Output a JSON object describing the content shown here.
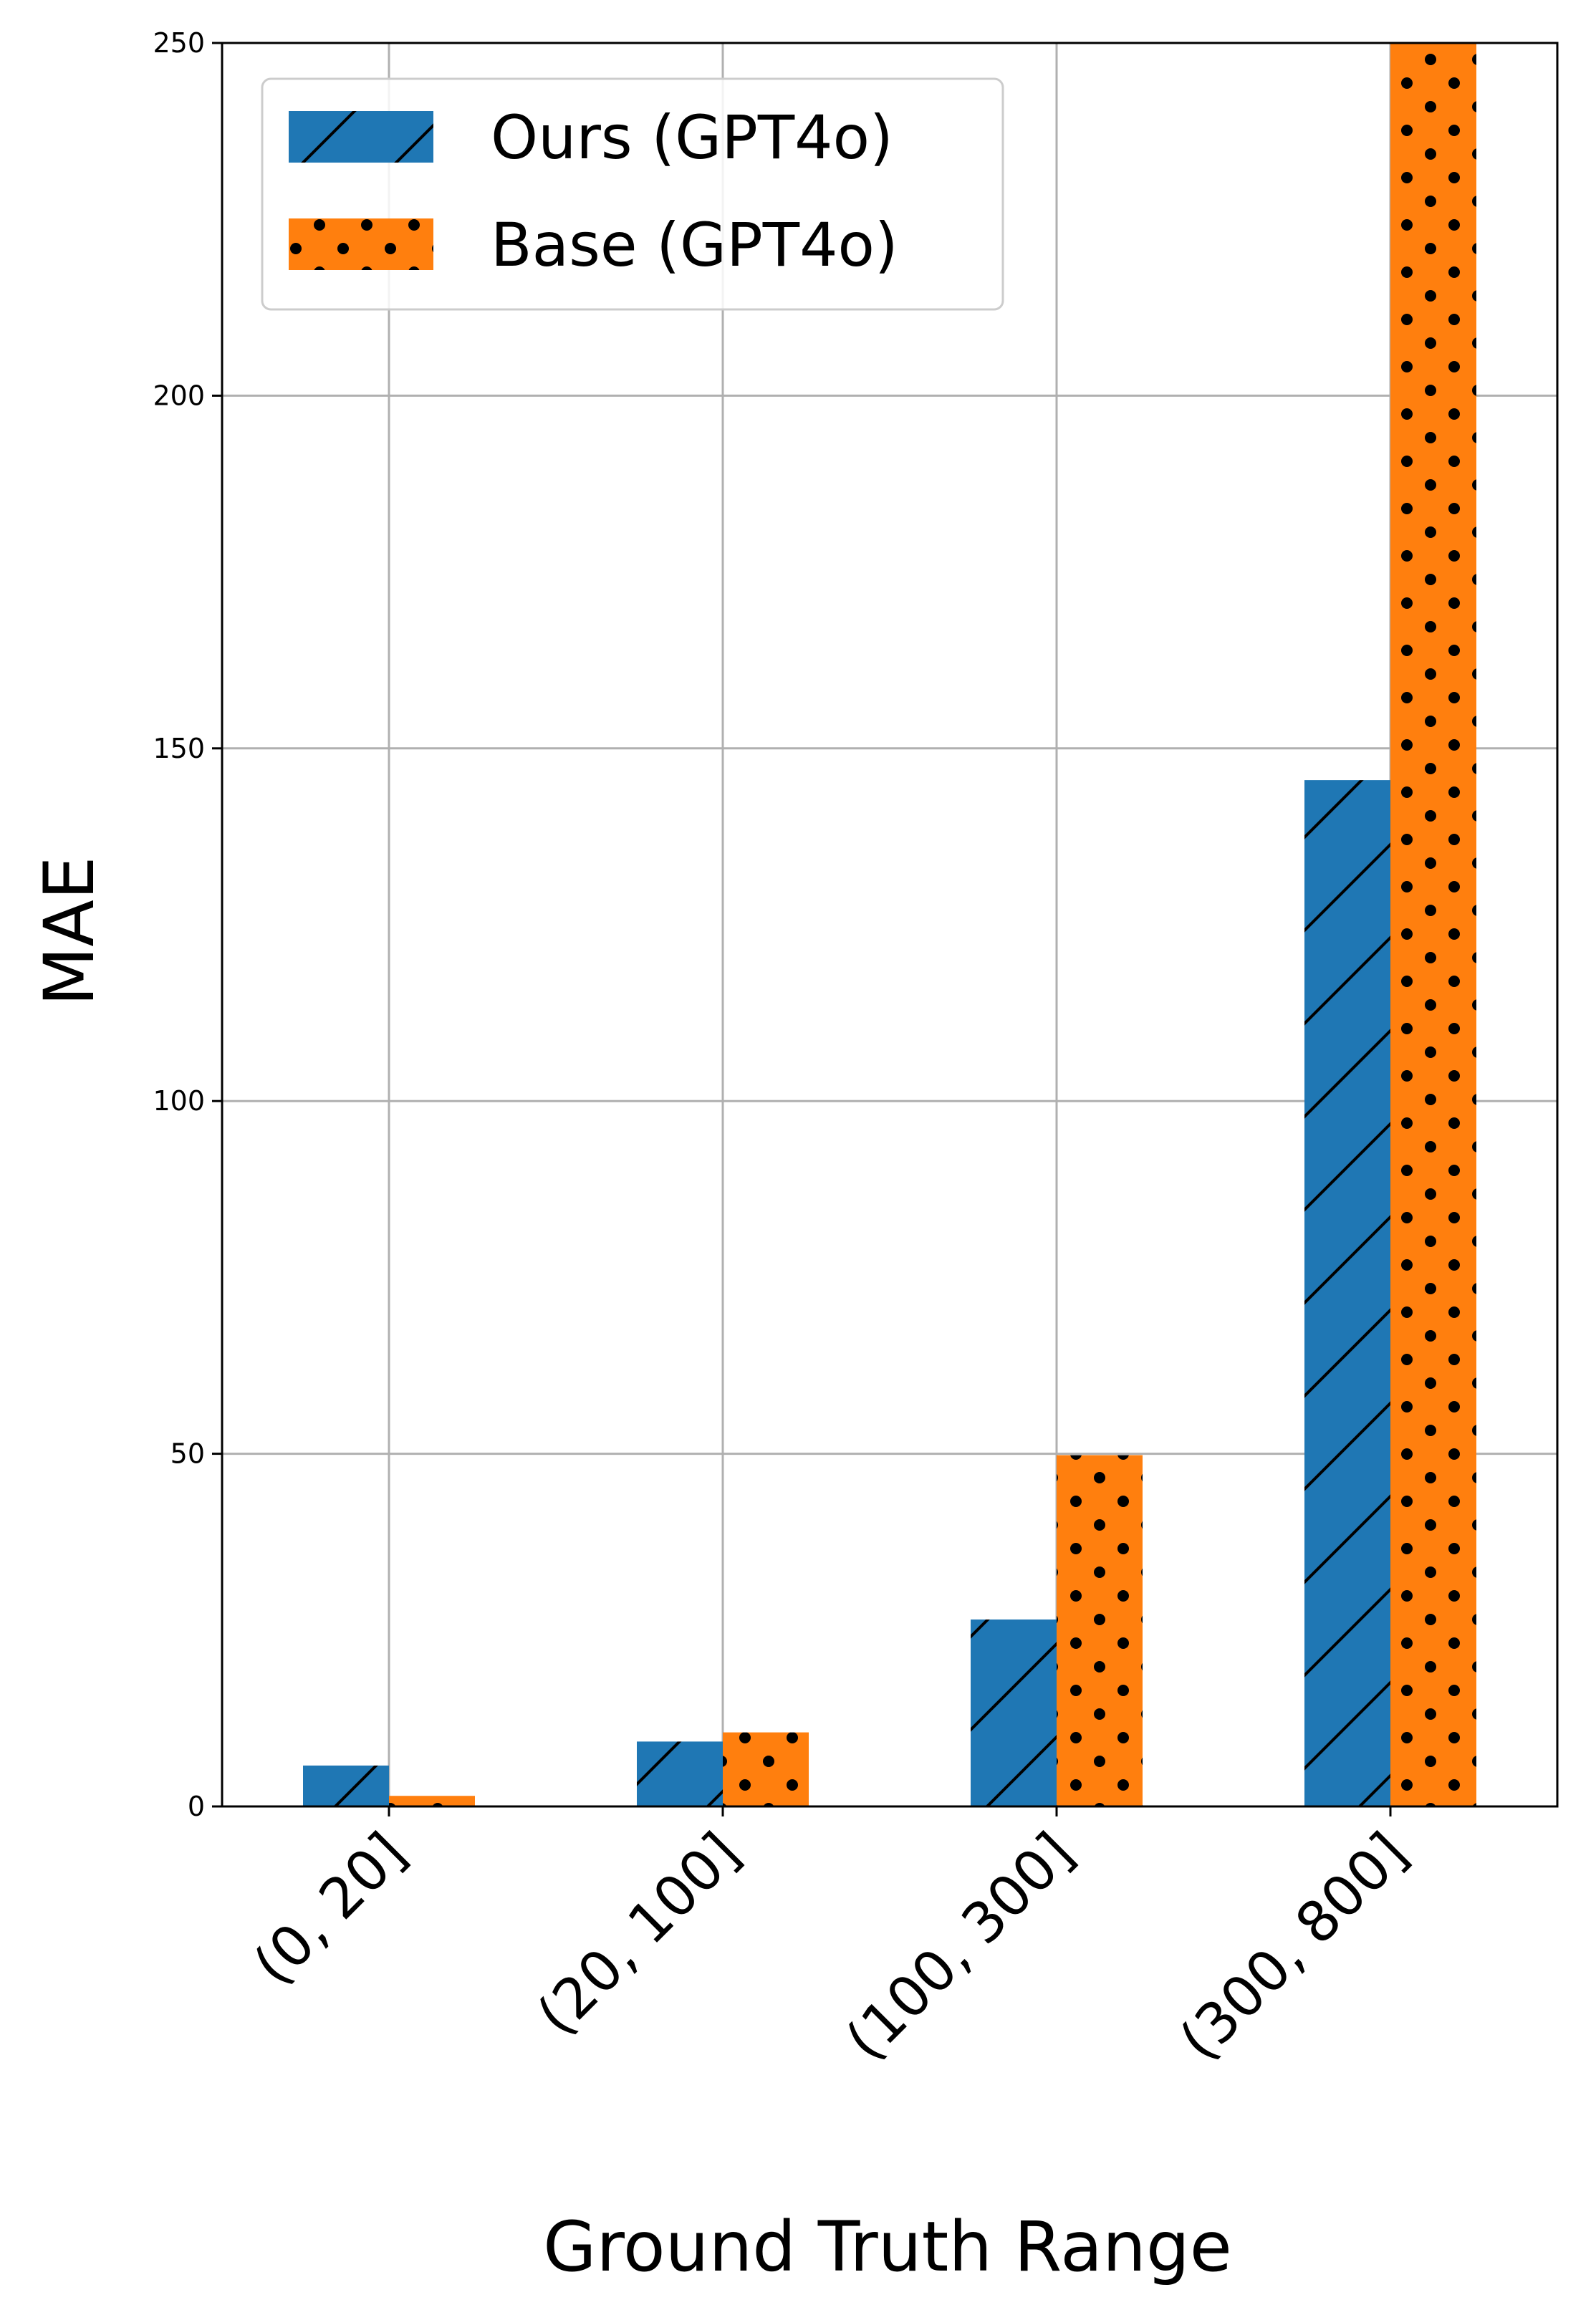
{
  "chart_data": {
    "type": "bar",
    "title": "",
    "xlabel": "Ground Truth Range",
    "ylabel": "MAE",
    "categories": [
      "(0, 20]",
      "(20, 100]",
      "(100, 300]",
      "(300, 800]"
    ],
    "series": [
      {
        "name": "Ours (GPT4o)",
        "values": [
          5.8,
          9.2,
          26.5,
          145.5
        ],
        "color": "#1f77b4",
        "hatch": "diagonal"
      },
      {
        "name": "Base (GPT4o)",
        "values": [
          1.5,
          10.5,
          49.8,
          250
        ],
        "color": "#ff7f0e",
        "hatch": "dots"
      }
    ],
    "ylim": [
      0,
      250
    ],
    "yticks": [
      0,
      50,
      100,
      150,
      200,
      250
    ],
    "grid": true,
    "legend_position": "upper-left"
  }
}
